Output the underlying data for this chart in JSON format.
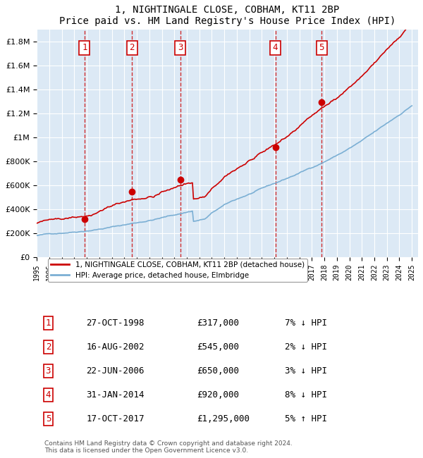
{
  "title": "1, NIGHTINGALE CLOSE, COBHAM, KT11 2BP",
  "subtitle": "Price paid vs. HM Land Registry's House Price Index (HPI)",
  "ylabel_ticks": [
    "£0",
    "£200K",
    "£400K",
    "£600K",
    "£800K",
    "£1M",
    "£1.2M",
    "£1.4M",
    "£1.6M",
    "£1.8M"
  ],
  "ytick_values": [
    0,
    200000,
    400000,
    600000,
    800000,
    1000000,
    1200000,
    1400000,
    1600000,
    1800000
  ],
  "ylim": [
    0,
    1900000
  ],
  "xlim_start": 1995.0,
  "xlim_end": 2025.5,
  "sale_dates": [
    1998.82,
    2002.62,
    2006.47,
    2014.08,
    2017.79
  ],
  "sale_prices": [
    317000,
    545000,
    650000,
    920000,
    1295000
  ],
  "sale_labels": [
    "1",
    "2",
    "3",
    "4",
    "5"
  ],
  "sale_info": [
    {
      "num": 1,
      "date": "27-OCT-1998",
      "price": "£317,000",
      "hpi": "7% ↓ HPI"
    },
    {
      "num": 2,
      "date": "16-AUG-2002",
      "price": "£545,000",
      "hpi": "2% ↓ HPI"
    },
    {
      "num": 3,
      "date": "22-JUN-2006",
      "price": "£650,000",
      "hpi": "3% ↓ HPI"
    },
    {
      "num": 4,
      "date": "31-JAN-2014",
      "price": "£920,000",
      "hpi": "8% ↓ HPI"
    },
    {
      "num": 5,
      "date": "17-OCT-2017",
      "price": "£1,295,000",
      "hpi": "5% ↑ HPI"
    }
  ],
  "legend_red": "1, NIGHTINGALE CLOSE, COBHAM, KT11 2BP (detached house)",
  "legend_blue": "HPI: Average price, detached house, Elmbridge",
  "footer": "Contains HM Land Registry data © Crown copyright and database right 2024.\nThis data is licensed under the Open Government Licence v3.0.",
  "background_color": "#dce9f5",
  "plot_bg": "#dce9f5",
  "grid_color": "#ffffff",
  "red_line_color": "#cc0000",
  "blue_line_color": "#7bafd4",
  "vline_color": "#cc0000",
  "box_color": "#cc0000"
}
